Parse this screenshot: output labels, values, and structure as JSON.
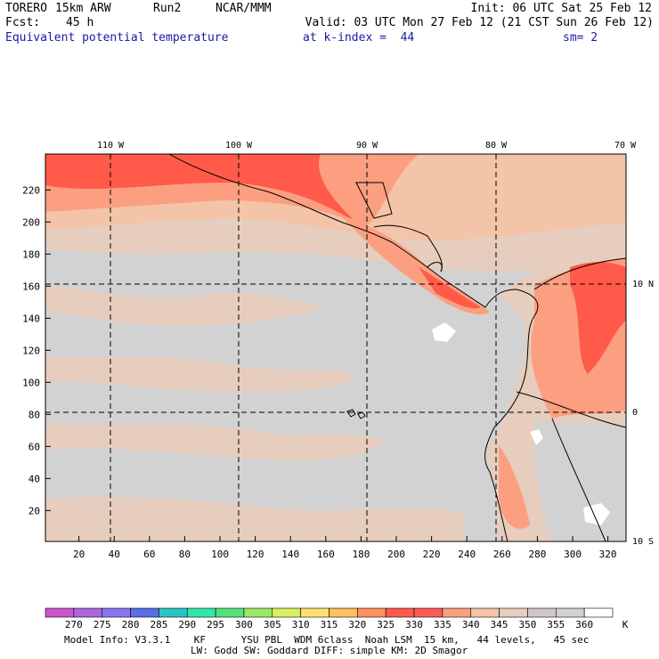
{
  "header": {
    "model": "TORERO",
    "resolution": "15km ARW",
    "run": "Run2",
    "org": "NCAR/MMM",
    "init": "Init: 06 UTC Sat 25 Feb 12",
    "fcst_label": "Fcst:",
    "fcst_value": "45 h",
    "valid": "Valid: 03 UTC Mon 27 Feb 12 (21 CST Sun 26 Feb 12)",
    "field": "Equivalent potential temperature",
    "level": "at k-index =  44",
    "smooth": "sm= 2"
  },
  "map": {
    "top_lon_labels": [
      "110 W",
      "100 W",
      "90 W",
      "80 W",
      "70 W"
    ],
    "right_lat_labels": [
      "10 N",
      "0",
      "10 S"
    ],
    "left_ticks": [
      "220",
      "200",
      "180",
      "160",
      "140",
      "120",
      "100",
      "80",
      "60",
      "40",
      "20"
    ],
    "bottom_ticks": [
      "20",
      "40",
      "60",
      "80",
      "100",
      "120",
      "140",
      "160",
      "180",
      "200",
      "220",
      "240",
      "260",
      "280",
      "300",
      "320"
    ]
  },
  "colorbar": {
    "labels": [
      "270",
      "275",
      "280",
      "285",
      "290",
      "295",
      "300",
      "305",
      "310",
      "315",
      "320",
      "325",
      "330",
      "335",
      "340",
      "345",
      "350",
      "355",
      "360"
    ],
    "unit": "K",
    "colors": [
      "#cc55cc",
      "#aa66dd",
      "#8877ee",
      "#5a6ee6",
      "#2bc4c4",
      "#33e6aa",
      "#55e07a",
      "#99e866",
      "#d6f060",
      "#ffe070",
      "#ffc060",
      "#ff9060",
      "#ff5a4a",
      "#ff5a55",
      "#fb9f80",
      "#f4c4a8",
      "#e6cdbd",
      "#d0c8c8",
      "#d2d2d2",
      "#ffffff"
    ]
  },
  "footer": {
    "line1": "Model Info: V3.3.1    KF      YSU PBL  WDM 6class  Noah LSM  15 km,   44 levels,   45 sec",
    "line2": "LW: Godd SW: Goddard DIFF: simple KM: 2D Smagor"
  }
}
